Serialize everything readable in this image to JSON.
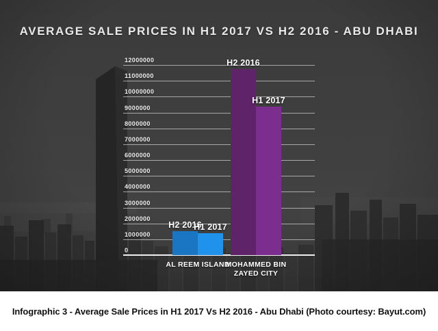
{
  "title": "AVERAGE SALE PRICES IN H1 2017 VS H2 2016 - ABU DHABI",
  "caption": "Infographic 3 - Average Sale Prices in H1 2017 Vs H2 2016 - Abu Dhabi (Photo courtesy: Bayut.com)",
  "chart_data": {
    "type": "bar",
    "title": "AVERAGE SALE PRICES IN H1 2017 VS H2 2016 - ABU DHABI",
    "categories": [
      "AL REEM ISLAND",
      "MOHAMMED BIN\nZAYED CITY"
    ],
    "series": [
      {
        "name": "H2 2016",
        "values": [
          1500000,
          11750000
        ]
      },
      {
        "name": "H1 2017",
        "values": [
          1400000,
          9350000
        ]
      }
    ],
    "bar_colors": [
      [
        "#1a76c2",
        "#1f93ec"
      ],
      [
        "#5e2369",
        "#7b2e8e"
      ]
    ],
    "ylabel": "",
    "xlabel": "",
    "ylim": [
      0,
      12000000
    ],
    "ytick_step": 1000000,
    "yticks": [
      "0",
      "1000000",
      "2000000",
      "3000000",
      "4000000",
      "5000000",
      "6000000",
      "7000000",
      "8000000",
      "9000000",
      "10000000",
      "11000000",
      "12000000"
    ],
    "grid": true,
    "legend_position": "labels-above-bars",
    "grid_color": "#ffffff",
    "text_color": "#ffffff",
    "background": "#3d3d3d"
  }
}
